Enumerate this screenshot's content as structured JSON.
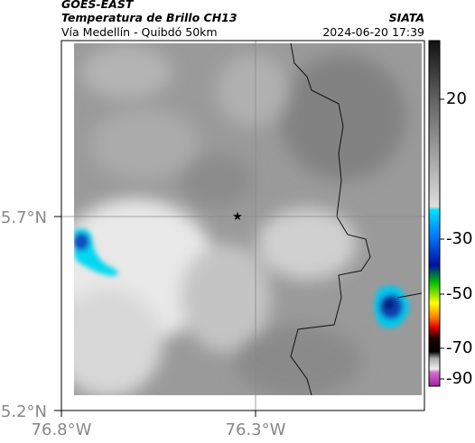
{
  "header": {
    "satellite": "GOES-EAST",
    "product": "Temperatura de Brillo CH13",
    "route": "Vía Medellín - Quibdó 50km",
    "source": "SIATA",
    "timestamp": "2024-06-20 17:39"
  },
  "map": {
    "lat_labels": [
      "5.7°N",
      "5.2°N"
    ],
    "lon_labels": [
      "76.8°W",
      "76.3°W"
    ]
  },
  "colorbar": {
    "ticks": [
      20,
      -30,
      -50,
      -70,
      -90
    ]
  }
}
